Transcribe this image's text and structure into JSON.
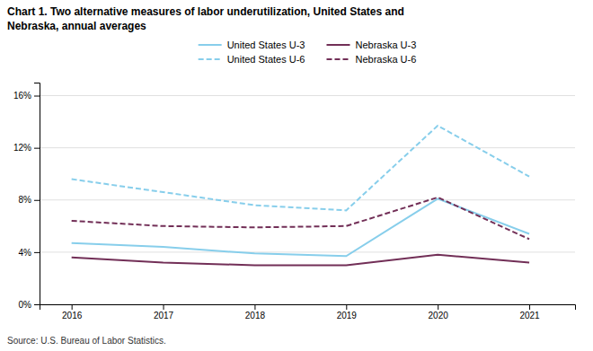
{
  "chart_data": {
    "type": "line",
    "title": [
      "Chart 1.  Two alternative measures of labor underutilization, United States and",
      "Nebraska, annual averages"
    ],
    "annotations": [
      "Source: U.S. Bureau of Labor Statistics."
    ],
    "x": [
      2016,
      2017,
      2018,
      2019,
      2020,
      2021
    ],
    "xlim": [
      2015.65,
      2021.5
    ],
    "xticks": [
      2016,
      2017,
      2018,
      2019,
      2020,
      2021
    ],
    "ylim": [
      0,
      17
    ],
    "yticks": [
      {
        "value": 0,
        "label": "0%"
      },
      {
        "value": 4,
        "label": "4%"
      },
      {
        "value": 8,
        "label": "8%"
      },
      {
        "value": 12,
        "label": "12%"
      },
      {
        "value": 16,
        "label": "16%"
      }
    ],
    "grid": true,
    "legend": "top",
    "series": [
      {
        "name": "United States U-3",
        "color": "#87CEEB",
        "line_style": "solid",
        "values": [
          4.7,
          4.4,
          3.9,
          3.7,
          8.1,
          5.4
        ]
      },
      {
        "name": "United States U-6",
        "color": "#87CEEB",
        "line_style": "dashed",
        "values": [
          9.6,
          8.6,
          7.6,
          7.2,
          13.7,
          9.8
        ]
      },
      {
        "name": "Nebraska U-3",
        "color": "#722F57",
        "line_style": "solid",
        "values": [
          3.6,
          3.2,
          3.0,
          3.0,
          3.8,
          3.2
        ]
      },
      {
        "name": "Nebraska U-6",
        "color": "#722F57",
        "line_style": "dashed",
        "values": [
          6.4,
          6.0,
          5.9,
          6.0,
          8.2,
          5.0
        ]
      }
    ]
  }
}
